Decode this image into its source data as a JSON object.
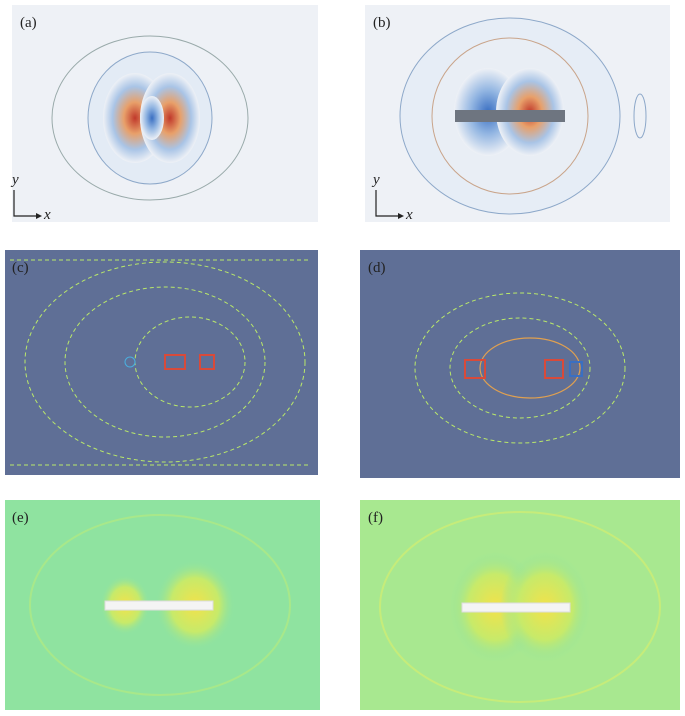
{
  "panels": [
    {
      "label": "(a)",
      "axes": {
        "y": "y",
        "x": "x"
      }
    },
    {
      "label": "(b)",
      "axes": {
        "y": "y",
        "x": "x"
      }
    },
    {
      "label": "(c)"
    },
    {
      "label": "(d)"
    },
    {
      "label": "(e)"
    },
    {
      "label": "(f)"
    }
  ]
}
